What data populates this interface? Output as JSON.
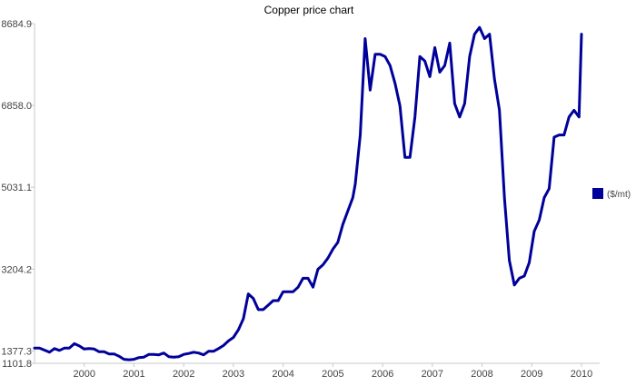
{
  "chart_data": {
    "type": "line",
    "title": "Copper  price chart",
    "xlabel": "",
    "ylabel": "",
    "legend_position": "right",
    "grid": false,
    "series_color": "#00009b",
    "y_ticks": [
      1101.8,
      1377.3,
      3204.2,
      5031.1,
      6858.0,
      8684.9
    ],
    "y_tick_labels": [
      "1101.8",
      "1377.3",
      "3204.2",
      "5031.1",
      "6858.0",
      "8684.9"
    ],
    "ylim": [
      1101.8,
      8684.9
    ],
    "x_ticks": [
      2000,
      2001,
      2002,
      2003,
      2004,
      2005,
      2006,
      2007,
      2008,
      2009,
      2010
    ],
    "x_tick_labels": [
      "2000",
      "2001",
      "2002",
      "2003",
      "2004",
      "2005",
      "2006",
      "2007",
      "2008",
      "2009",
      "2010"
    ],
    "xlim": [
      1999.0,
      2010.0
    ],
    "series": [
      {
        "name": "($/mt)",
        "x": [
          1999.0,
          1999.1,
          1999.3,
          1999.4,
          1999.5,
          1999.6,
          1999.7,
          1999.8,
          1999.9,
          2000.0,
          2000.1,
          2000.2,
          2000.3,
          2000.4,
          2000.5,
          2000.6,
          2000.7,
          2000.8,
          2000.9,
          2001.0,
          2001.1,
          2001.2,
          2001.3,
          2001.4,
          2001.5,
          2001.6,
          2001.7,
          2001.8,
          2001.9,
          2002.0,
          2002.1,
          2002.2,
          2002.3,
          2002.4,
          2002.5,
          2002.6,
          2002.7,
          2002.8,
          2002.9,
          2003.0,
          2003.1,
          2003.2,
          2003.3,
          2003.4,
          2003.5,
          2003.6,
          2003.7,
          2003.8,
          2003.9,
          2004.0,
          2004.1,
          2004.2,
          2004.3,
          2004.4,
          2004.5,
          2004.6,
          2004.7,
          2004.8,
          2004.9,
          2005.0,
          2005.1,
          2005.2,
          2005.3,
          2005.4,
          2005.45,
          2005.55,
          2005.65,
          2005.75,
          2005.85,
          2005.95,
          2006.05,
          2006.15,
          2006.25,
          2006.35,
          2006.45,
          2006.55,
          2006.65,
          2006.75,
          2006.85,
          2006.95,
          2007.05,
          2007.15,
          2007.25,
          2007.35,
          2007.45,
          2007.55,
          2007.65,
          2007.75,
          2007.85,
          2007.95,
          2008.05,
          2008.15,
          2008.25,
          2008.35,
          2008.45,
          2008.55,
          2008.65,
          2008.75,
          2008.85,
          2008.95,
          2009.05,
          2009.15,
          2009.25,
          2009.35,
          2009.45,
          2009.55,
          2009.65,
          2009.75,
          2009.85,
          2009.95,
          2010.0
        ],
        "values": [
          1440,
          1440,
          1350,
          1430,
          1390,
          1440,
          1440,
          1540,
          1490,
          1420,
          1430,
          1420,
          1360,
          1360,
          1310,
          1310,
          1260,
          1190,
          1180,
          1190,
          1230,
          1240,
          1300,
          1300,
          1290,
          1330,
          1250,
          1240,
          1250,
          1300,
          1320,
          1350,
          1330,
          1290,
          1370,
          1370,
          1430,
          1500,
          1600,
          1680,
          1850,
          2100,
          2650,
          2550,
          2300,
          2300,
          2400,
          2500,
          2500,
          2700,
          2700,
          2700,
          2800,
          3000,
          3000,
          2800,
          3200,
          3300,
          3450,
          3650,
          3800,
          4200,
          4500,
          4800,
          5100,
          6200,
          8350,
          7200,
          8000,
          8000,
          7950,
          7750,
          7350,
          6850,
          5700,
          5700,
          6600,
          7950,
          7850,
          7500,
          8150,
          7600,
          7750,
          8250,
          6900,
          6600,
          6900,
          7950,
          8450,
          8600,
          8350,
          8450,
          7450,
          6750,
          4800,
          3400,
          2850,
          3000,
          3050,
          3350,
          4050,
          4300,
          4800,
          5000,
          6150,
          6200,
          6200,
          6600,
          6750,
          6600,
          8450
        ]
      }
    ]
  }
}
